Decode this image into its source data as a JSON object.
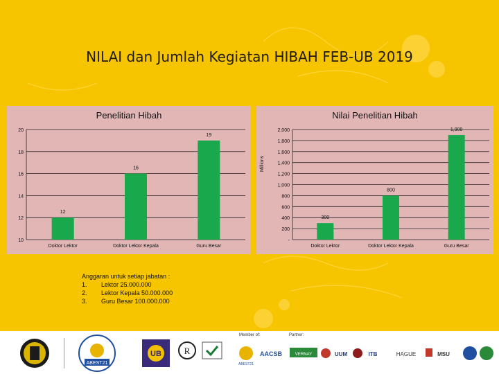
{
  "title": "NILAI dan Jumlah Kegiatan HIBAH FEB-UB 2019",
  "colors": {
    "bar": "#1aa84c",
    "panel": "#e3b6b6",
    "background": "#f7c400"
  },
  "chart_data": [
    {
      "type": "bar",
      "title": "Penelitian Hibah",
      "categories": [
        "Doktor Lektor",
        "Doktor Lektor Kepala",
        "Guru Besar"
      ],
      "values": [
        12,
        16,
        19
      ],
      "value_labels": [
        "12",
        "16",
        "19"
      ],
      "yticks": [
        "10",
        "12",
        "14",
        "16",
        "18",
        "20"
      ],
      "ylim": [
        10,
        20
      ],
      "ylabel": "",
      "xlabel": ""
    },
    {
      "type": "bar",
      "title": "Nilai Penelitian Hibah",
      "categories": [
        "Doktor Lektor",
        "Doktor Lektor Kepala",
        "Guru Besar"
      ],
      "values": [
        300,
        800,
        1900
      ],
      "value_labels": [
        "300",
        "800",
        "1,900"
      ],
      "yticks": [
        "-",
        "200",
        "400",
        "600",
        "800",
        "1,000",
        "1,200",
        "1,400",
        "1,600",
        "1,800",
        "2,000"
      ],
      "ylim": [
        0,
        2000
      ],
      "ylabel": "Millions",
      "xlabel": ""
    }
  ],
  "note": {
    "heading": "Anggaran untuk setiap jabatan :",
    "items": [
      {
        "num": "1.",
        "text": "Lektor 25.000.000"
      },
      {
        "num": "2.",
        "text": "Lektor Kepala 50.000.000"
      },
      {
        "num": "3.",
        "text": "Guru Besar 100.000.000"
      }
    ]
  },
  "footer": {
    "member_label": "Member of:",
    "partner_label": "Partner:",
    "abest_text": "ABEST21",
    "ub_text": "UB",
    "aacsb_text": "AACSB",
    "mbv_text": "VERNAY",
    "uum_text": "UUM",
    "itb_text": "ITB",
    "hague_text": "HAGUE",
    "msu_text": "MSU"
  }
}
